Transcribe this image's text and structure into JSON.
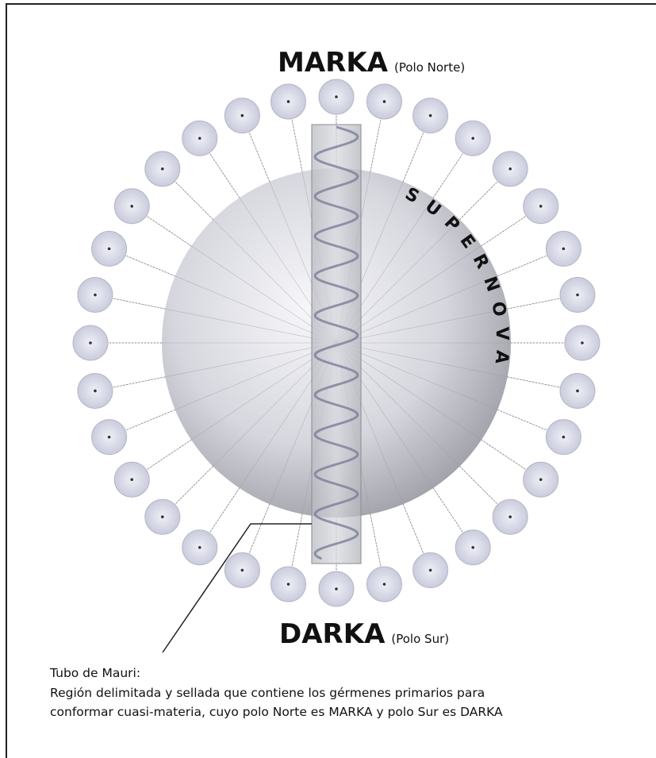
{
  "north": {
    "name": "MARKA",
    "note": "(Polo Norte)"
  },
  "south": {
    "name": "DARKA",
    "note": "(Polo Sur)"
  },
  "sphere_label": "SUPERNOVA",
  "callout": {
    "title": "Tubo de Mauri:",
    "lines": [
      "Región delimitada y sellada que contiene los gérmenes primarios para",
      "conformar cuasi-materia, cuyo polo Norte es MARKA y polo Sur es DARKA"
    ]
  }
}
